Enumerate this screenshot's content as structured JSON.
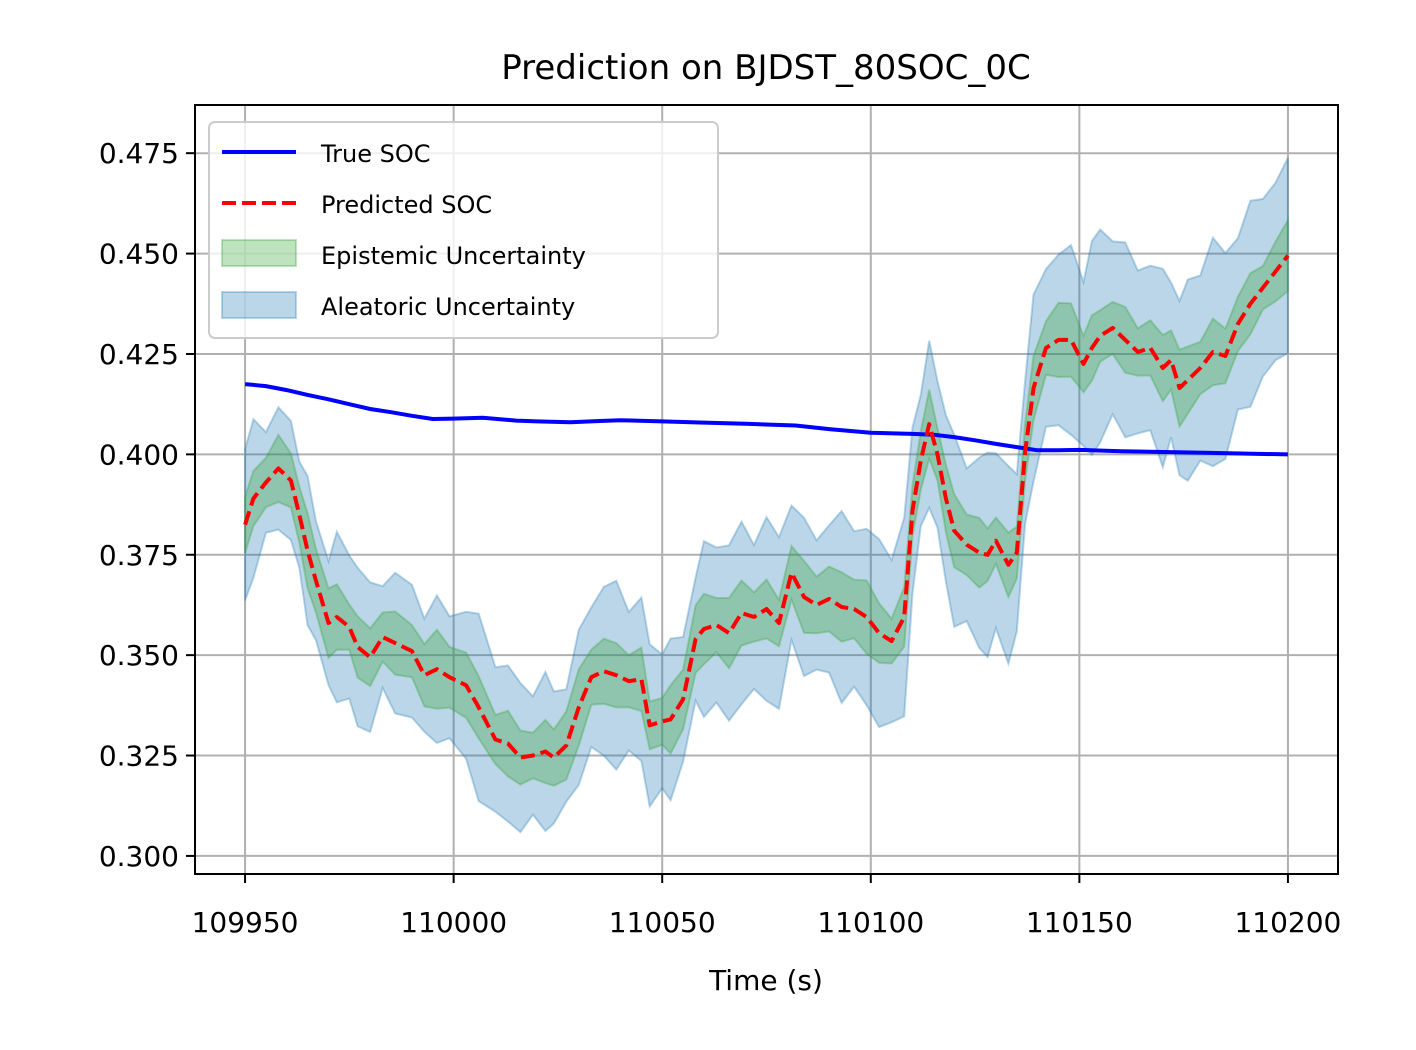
{
  "chart_data": {
    "type": "line",
    "title": "Prediction on BJDST_80SOC_0C",
    "xlabel": "Time (s)",
    "ylabel": "",
    "xlim": [
      109938,
      110212
    ],
    "ylim": [
      0.2955,
      0.487
    ],
    "xticks": [
      109950,
      110000,
      110050,
      110100,
      110150,
      110200
    ],
    "yticks": [
      0.3,
      0.325,
      0.35,
      0.375,
      0.4,
      0.425,
      0.45,
      0.475
    ],
    "xtick_labels": [
      "109950",
      "110000",
      "110050",
      "110100",
      "110150",
      "110200"
    ],
    "ytick_labels": [
      "0.300",
      "0.325",
      "0.350",
      "0.375",
      "0.400",
      "0.425",
      "0.450",
      "0.475"
    ],
    "grid": true,
    "legend_position": "upper-left",
    "legend": [
      "True SOC",
      "Predicted SOC",
      "Epistemic Uncertainty",
      "Aleatoric Uncertainty"
    ],
    "colors": {
      "true": "#0000ff",
      "pred": "#ff0000",
      "epistemic_fill": "#2ca02c",
      "aleatoric_fill": "#1f77b4"
    },
    "series": [
      {
        "name": "True SOC",
        "x": [
          109950,
          109955,
          109960,
          109965,
          109970,
          109975,
          109980,
          109985,
          109990,
          109995,
          110000,
          110007,
          110015,
          110020,
          110028,
          110035,
          110040,
          110050,
          110060,
          110070,
          110082,
          110090,
          110100,
          110110,
          110115,
          110120,
          110125,
          110130,
          110135,
          110140,
          110145,
          110150,
          110160,
          110170,
          110180,
          110190,
          110200
        ],
        "values": [
          0.4175,
          0.417,
          0.416,
          0.4148,
          0.4137,
          0.4125,
          0.4113,
          0.4105,
          0.4096,
          0.4088,
          0.4089,
          0.4091,
          0.4084,
          0.4082,
          0.408,
          0.4083,
          0.4085,
          0.4082,
          0.4079,
          0.4076,
          0.4072,
          0.4063,
          0.4054,
          0.4051,
          0.4049,
          0.4043,
          0.4035,
          0.4026,
          0.4018,
          0.401,
          0.401,
          0.4011,
          0.4008,
          0.4006,
          0.4004,
          0.4002,
          0.4
        ]
      },
      {
        "name": "Predicted SOC",
        "x": [
          109950,
          109952,
          109955,
          109958,
          109961,
          109963,
          109965,
          109967,
          109970,
          109972,
          109975,
          109977,
          109980,
          109983,
          109986,
          109990,
          109993,
          109996,
          109999,
          110003,
          110006,
          110010,
          110013,
          110016,
          110019,
          110022,
          110024,
          110027,
          110030,
          110033,
          110036,
          110039,
          110042,
          110045,
          110047,
          110050,
          110052,
          110055,
          110058,
          110060,
          110063,
          110066,
          110069,
          110072,
          110075,
          110078,
          110081,
          110084,
          110087,
          110090,
          110093,
          110096,
          110099,
          110102,
          110105,
          110108,
          110110,
          110112,
          110114,
          110116,
          110118,
          110120,
          110123,
          110126,
          110128,
          110130,
          110133,
          110135,
          110137,
          110139,
          110142,
          110145,
          110148,
          110151,
          110153,
          110155,
          110158,
          110161,
          110164,
          110167,
          110170,
          110172,
          110174,
          110176,
          110179,
          110182,
          110185,
          110188,
          110191,
          110194,
          110197,
          110200
        ],
        "values": [
          0.3825,
          0.389,
          0.393,
          0.3965,
          0.3935,
          0.385,
          0.376,
          0.3685,
          0.358,
          0.3595,
          0.357,
          0.352,
          0.3495,
          0.3545,
          0.353,
          0.351,
          0.345,
          0.3465,
          0.3445,
          0.3425,
          0.337,
          0.329,
          0.328,
          0.3245,
          0.325,
          0.326,
          0.3245,
          0.3275,
          0.337,
          0.3445,
          0.346,
          0.345,
          0.3435,
          0.344,
          0.3325,
          0.3335,
          0.334,
          0.339,
          0.354,
          0.3565,
          0.3575,
          0.3555,
          0.3605,
          0.3595,
          0.3615,
          0.358,
          0.3705,
          0.3645,
          0.3625,
          0.364,
          0.362,
          0.3615,
          0.3595,
          0.3555,
          0.3535,
          0.3595,
          0.386,
          0.3985,
          0.4075,
          0.4,
          0.389,
          0.381,
          0.3775,
          0.3755,
          0.375,
          0.3785,
          0.3725,
          0.3755,
          0.4005,
          0.4165,
          0.4265,
          0.4285,
          0.4285,
          0.4225,
          0.4265,
          0.4295,
          0.4315,
          0.4285,
          0.4255,
          0.4265,
          0.4215,
          0.4235,
          0.4165,
          0.4185,
          0.4215,
          0.4255,
          0.4245,
          0.4325,
          0.4375,
          0.4415,
          0.4455,
          0.4495
        ]
      }
    ]
  }
}
